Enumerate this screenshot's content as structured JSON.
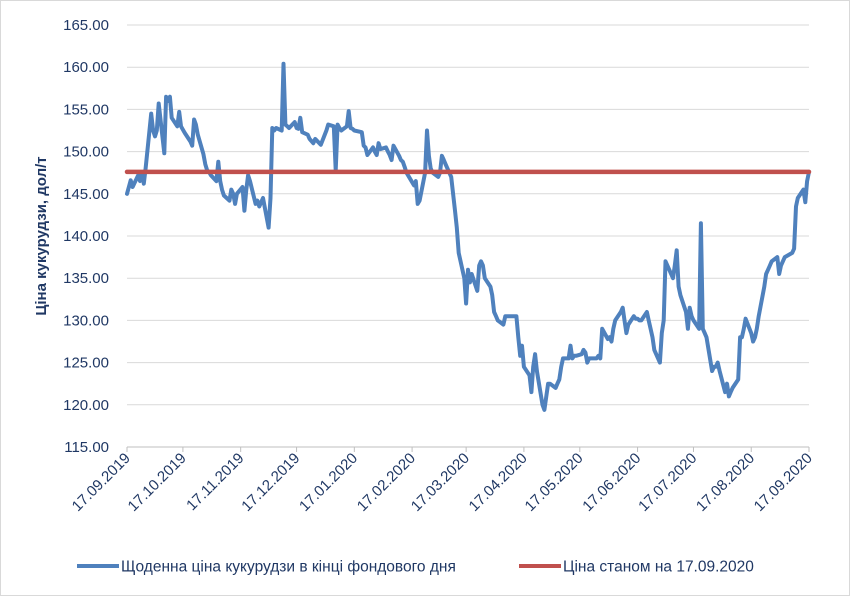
{
  "chart_data": {
    "type": "line",
    "ylabel": "Ціна кукурудзи, дол/т",
    "xlabel": "",
    "title": "",
    "ylim": [
      115,
      165
    ],
    "y_ticks": [
      "115.00",
      "120.00",
      "125.00",
      "130.00",
      "135.00",
      "140.00",
      "145.00",
      "150.00",
      "155.00",
      "160.00",
      "165.00"
    ],
    "x_range": [
      "2019-09-17",
      "2020-09-17"
    ],
    "x_ticks": [
      {
        "date": "2019-09-17",
        "label": "17.09.2019"
      },
      {
        "date": "2019-10-17",
        "label": "17.10.2019"
      },
      {
        "date": "2019-11-17",
        "label": "17.11.2019"
      },
      {
        "date": "2019-12-17",
        "label": "17.12.2019"
      },
      {
        "date": "2020-01-17",
        "label": "17.01.2020"
      },
      {
        "date": "2020-02-17",
        "label": "17.02.2020"
      },
      {
        "date": "2020-03-17",
        "label": "17.03.2020"
      },
      {
        "date": "2020-04-17",
        "label": "17.04.2020"
      },
      {
        "date": "2020-05-17",
        "label": "17.05.2020"
      },
      {
        "date": "2020-06-17",
        "label": "17.06.2020"
      },
      {
        "date": "2020-07-17",
        "label": "17.07.2020"
      },
      {
        "date": "2020-08-17",
        "label": "17.08.2020"
      },
      {
        "date": "2020-09-17",
        "label": "17.09.2020"
      }
    ],
    "grid": true,
    "legend_position": "bottom",
    "series": [
      {
        "name": "Щоденна ціна кукурудзи в кінці фондового дня",
        "color": "#4f81bd",
        "points": [
          [
            "2019-09-17",
            145.0
          ],
          [
            "2019-09-19",
            146.6
          ],
          [
            "2019-09-20",
            145.8
          ],
          [
            "2019-09-23",
            147.2
          ],
          [
            "2019-09-24",
            146.5
          ],
          [
            "2019-09-25",
            147.5
          ],
          [
            "2019-09-26",
            146.2
          ],
          [
            "2019-09-27",
            148.0
          ],
          [
            "2019-09-30",
            154.5
          ],
          [
            "2019-10-01",
            152.5
          ],
          [
            "2019-10-02",
            151.8
          ],
          [
            "2019-10-03",
            152.5
          ],
          [
            "2019-10-04",
            155.7
          ],
          [
            "2019-10-07",
            149.8
          ],
          [
            "2019-10-08",
            156.5
          ],
          [
            "2019-10-09",
            156.0
          ],
          [
            "2019-10-10",
            156.5
          ],
          [
            "2019-10-11",
            154.0
          ],
          [
            "2019-10-14",
            153.0
          ],
          [
            "2019-10-15",
            154.7
          ],
          [
            "2019-10-16",
            153.0
          ],
          [
            "2019-10-17",
            152.6
          ],
          [
            "2019-10-18",
            152.2
          ],
          [
            "2019-10-21",
            151.2
          ],
          [
            "2019-10-22",
            150.7
          ],
          [
            "2019-10-23",
            153.8
          ],
          [
            "2019-10-24",
            153.2
          ],
          [
            "2019-10-25",
            152.0
          ],
          [
            "2019-10-28",
            149.7
          ],
          [
            "2019-10-29",
            148.5
          ],
          [
            "2019-10-30",
            147.8
          ],
          [
            "2019-10-31",
            147.6
          ],
          [
            "2019-11-01",
            147.2
          ],
          [
            "2019-11-04",
            146.5
          ],
          [
            "2019-11-05",
            148.8
          ],
          [
            "2019-11-06",
            146.5
          ],
          [
            "2019-11-07",
            145.5
          ],
          [
            "2019-11-08",
            144.8
          ],
          [
            "2019-11-11",
            144.2
          ],
          [
            "2019-11-12",
            145.5
          ],
          [
            "2019-11-13",
            145.0
          ],
          [
            "2019-11-14",
            143.8
          ],
          [
            "2019-11-15",
            145.0
          ],
          [
            "2019-11-18",
            145.8
          ],
          [
            "2019-11-19",
            143.0
          ],
          [
            "2019-11-20",
            145.5
          ],
          [
            "2019-11-21",
            147.2
          ],
          [
            "2019-11-22",
            146.5
          ],
          [
            "2019-11-25",
            143.8
          ],
          [
            "2019-11-26",
            144.2
          ],
          [
            "2019-11-27",
            143.5
          ],
          [
            "2019-11-29",
            144.5
          ],
          [
            "2019-12-02",
            141.0
          ],
          [
            "2019-12-03",
            144.5
          ],
          [
            "2019-12-04",
            152.8
          ],
          [
            "2019-12-05",
            152.5
          ],
          [
            "2019-12-06",
            152.8
          ],
          [
            "2019-12-09",
            152.5
          ],
          [
            "2019-12-10",
            160.4
          ],
          [
            "2019-12-11",
            153.2
          ],
          [
            "2019-12-12",
            153.0
          ],
          [
            "2019-12-13",
            152.8
          ],
          [
            "2019-12-16",
            153.5
          ],
          [
            "2019-12-17",
            152.8
          ],
          [
            "2019-12-18",
            152.7
          ],
          [
            "2019-12-19",
            154.0
          ],
          [
            "2019-12-20",
            152.3
          ],
          [
            "2019-12-23",
            152.0
          ],
          [
            "2019-12-24",
            151.5
          ],
          [
            "2019-12-26",
            151.0
          ],
          [
            "2019-12-27",
            151.5
          ],
          [
            "2019-12-30",
            150.8
          ],
          [
            "2020-01-02",
            152.5
          ],
          [
            "2020-01-03",
            153.2
          ],
          [
            "2020-01-06",
            153.0
          ],
          [
            "2020-01-07",
            147.8
          ],
          [
            "2020-01-08",
            153.2
          ],
          [
            "2020-01-09",
            152.8
          ],
          [
            "2020-01-10",
            152.5
          ],
          [
            "2020-01-13",
            153.0
          ],
          [
            "2020-01-14",
            154.8
          ],
          [
            "2020-01-15",
            152.8
          ],
          [
            "2020-01-16",
            152.7
          ],
          [
            "2020-01-17",
            152.5
          ],
          [
            "2020-01-21",
            152.3
          ],
          [
            "2020-01-22",
            150.7
          ],
          [
            "2020-01-23",
            150.5
          ],
          [
            "2020-01-24",
            149.6
          ],
          [
            "2020-01-27",
            150.5
          ],
          [
            "2020-01-28",
            150.0
          ],
          [
            "2020-01-29",
            149.6
          ],
          [
            "2020-01-30",
            151.0
          ],
          [
            "2020-01-31",
            150.3
          ],
          [
            "2020-02-03",
            150.5
          ],
          [
            "2020-02-04",
            150.0
          ],
          [
            "2020-02-05",
            149.6
          ],
          [
            "2020-02-06",
            149.0
          ],
          [
            "2020-02-07",
            150.7
          ],
          [
            "2020-02-10",
            149.5
          ],
          [
            "2020-02-11",
            149.0
          ],
          [
            "2020-02-12",
            148.8
          ],
          [
            "2020-02-13",
            148.2
          ],
          [
            "2020-02-14",
            147.5
          ],
          [
            "2020-02-18",
            146.0
          ],
          [
            "2020-02-19",
            146.5
          ],
          [
            "2020-02-20",
            143.8
          ],
          [
            "2020-02-21",
            144.2
          ],
          [
            "2020-02-24",
            147.5
          ],
          [
            "2020-02-25",
            152.5
          ],
          [
            "2020-02-26",
            149.5
          ],
          [
            "2020-02-27",
            148.0
          ],
          [
            "2020-02-28",
            147.5
          ],
          [
            "2020-03-02",
            147.0
          ],
          [
            "2020-03-03",
            147.5
          ],
          [
            "2020-03-04",
            149.5
          ],
          [
            "2020-03-05",
            149.0
          ],
          [
            "2020-03-06",
            148.5
          ],
          [
            "2020-03-09",
            147.0
          ],
          [
            "2020-03-10",
            145.0
          ],
          [
            "2020-03-11",
            143.0
          ],
          [
            "2020-03-12",
            141.0
          ],
          [
            "2020-03-13",
            138.0
          ],
          [
            "2020-03-16",
            135.0
          ],
          [
            "2020-03-17",
            132.0
          ],
          [
            "2020-03-18",
            136.0
          ],
          [
            "2020-03-19",
            134.5
          ],
          [
            "2020-03-20",
            135.5
          ],
          [
            "2020-03-23",
            133.5
          ],
          [
            "2020-03-24",
            136.5
          ],
          [
            "2020-03-25",
            137.0
          ],
          [
            "2020-03-26",
            136.5
          ],
          [
            "2020-03-27",
            135.0
          ],
          [
            "2020-03-30",
            134.0
          ],
          [
            "2020-03-31",
            133.0
          ],
          [
            "2020-04-01",
            131.0
          ],
          [
            "2020-04-02",
            130.5
          ],
          [
            "2020-04-03",
            130.0
          ],
          [
            "2020-04-06",
            129.5
          ],
          [
            "2020-04-07",
            130.5
          ],
          [
            "2020-04-08",
            130.5
          ],
          [
            "2020-04-09",
            130.5
          ],
          [
            "2020-04-13",
            130.5
          ],
          [
            "2020-04-14",
            128.0
          ],
          [
            "2020-04-15",
            125.8
          ],
          [
            "2020-04-16",
            127.0
          ],
          [
            "2020-04-17",
            124.5
          ],
          [
            "2020-04-20",
            123.5
          ],
          [
            "2020-04-21",
            121.5
          ],
          [
            "2020-04-22",
            124.5
          ],
          [
            "2020-04-23",
            126.0
          ],
          [
            "2020-04-24",
            124.0
          ],
          [
            "2020-04-27",
            120.0
          ],
          [
            "2020-04-28",
            119.4
          ],
          [
            "2020-04-29",
            121.0
          ],
          [
            "2020-04-30",
            122.5
          ],
          [
            "2020-05-01",
            122.5
          ],
          [
            "2020-05-04",
            122.0
          ],
          [
            "2020-05-05",
            122.5
          ],
          [
            "2020-05-06",
            123.0
          ],
          [
            "2020-05-07",
            124.5
          ],
          [
            "2020-05-08",
            125.5
          ],
          [
            "2020-05-11",
            125.5
          ],
          [
            "2020-05-12",
            127.0
          ],
          [
            "2020-05-13",
            125.5
          ],
          [
            "2020-05-14",
            125.8
          ],
          [
            "2020-05-15",
            125.8
          ],
          [
            "2020-05-18",
            126.0
          ],
          [
            "2020-05-19",
            126.5
          ],
          [
            "2020-05-20",
            126.2
          ],
          [
            "2020-05-21",
            125.0
          ],
          [
            "2020-05-22",
            125.5
          ],
          [
            "2020-05-26",
            125.5
          ],
          [
            "2020-05-27",
            125.8
          ],
          [
            "2020-05-28",
            125.5
          ],
          [
            "2020-05-29",
            129.0
          ],
          [
            "2020-06-01",
            127.8
          ],
          [
            "2020-06-02",
            128.0
          ],
          [
            "2020-06-03",
            127.5
          ],
          [
            "2020-06-04",
            129.0
          ],
          [
            "2020-06-05",
            130.0
          ],
          [
            "2020-06-08",
            131.0
          ],
          [
            "2020-06-09",
            131.5
          ],
          [
            "2020-06-10",
            130.0
          ],
          [
            "2020-06-11",
            128.5
          ],
          [
            "2020-06-12",
            129.5
          ],
          [
            "2020-06-15",
            130.5
          ],
          [
            "2020-06-16",
            130.2
          ],
          [
            "2020-06-17",
            130.2
          ],
          [
            "2020-06-18",
            130.0
          ],
          [
            "2020-06-19",
            130.0
          ],
          [
            "2020-06-22",
            131.0
          ],
          [
            "2020-06-23",
            130.0
          ],
          [
            "2020-06-24",
            129.0
          ],
          [
            "2020-06-25",
            128.0
          ],
          [
            "2020-06-26",
            126.5
          ],
          [
            "2020-06-29",
            125.0
          ],
          [
            "2020-06-30",
            128.5
          ],
          [
            "2020-07-01",
            130.0
          ],
          [
            "2020-07-02",
            137.0
          ],
          [
            "2020-07-06",
            135.0
          ],
          [
            "2020-07-07",
            136.5
          ],
          [
            "2020-07-08",
            138.3
          ],
          [
            "2020-07-09",
            134.0
          ],
          [
            "2020-07-10",
            133.0
          ],
          [
            "2020-07-13",
            131.0
          ],
          [
            "2020-07-14",
            129.0
          ],
          [
            "2020-07-15",
            131.5
          ],
          [
            "2020-07-16",
            130.5
          ],
          [
            "2020-07-17",
            130.0
          ],
          [
            "2020-07-20",
            129.0
          ],
          [
            "2020-07-21",
            141.5
          ],
          [
            "2020-07-22",
            129.0
          ],
          [
            "2020-07-23",
            128.5
          ],
          [
            "2020-07-24",
            128.0
          ],
          [
            "2020-07-27",
            124.0
          ],
          [
            "2020-07-28",
            124.5
          ],
          [
            "2020-07-29",
            124.5
          ],
          [
            "2020-07-30",
            125.0
          ],
          [
            "2020-07-31",
            124.0
          ],
          [
            "2020-08-03",
            121.5
          ],
          [
            "2020-08-04",
            122.5
          ],
          [
            "2020-08-05",
            121.0
          ],
          [
            "2020-08-06",
            121.5
          ],
          [
            "2020-08-07",
            122.0
          ],
          [
            "2020-08-10",
            123.0
          ],
          [
            "2020-08-11",
            128.0
          ],
          [
            "2020-08-12",
            128.0
          ],
          [
            "2020-08-13",
            129.0
          ],
          [
            "2020-08-14",
            130.2
          ],
          [
            "2020-08-17",
            128.5
          ],
          [
            "2020-08-18",
            127.5
          ],
          [
            "2020-08-19",
            128.0
          ],
          [
            "2020-08-20",
            129.0
          ],
          [
            "2020-08-21",
            130.5
          ],
          [
            "2020-08-24",
            134.0
          ],
          [
            "2020-08-25",
            135.5
          ],
          [
            "2020-08-26",
            136.0
          ],
          [
            "2020-08-27",
            136.5
          ],
          [
            "2020-08-28",
            137.0
          ],
          [
            "2020-08-31",
            137.5
          ],
          [
            "2020-09-01",
            135.5
          ],
          [
            "2020-09-02",
            136.5
          ],
          [
            "2020-09-03",
            137.0
          ],
          [
            "2020-09-04",
            137.5
          ],
          [
            "2020-09-08",
            138.0
          ],
          [
            "2020-09-09",
            138.5
          ],
          [
            "2020-09-10",
            143.5
          ],
          [
            "2020-09-11",
            144.5
          ],
          [
            "2020-09-14",
            145.5
          ],
          [
            "2020-09-15",
            144.0
          ],
          [
            "2020-09-16",
            146.5
          ],
          [
            "2020-09-17",
            147.6
          ]
        ]
      },
      {
        "name": "Ціна станом на 17.09.2020",
        "color": "#c0504d",
        "points": [
          [
            "2019-09-17",
            147.6
          ],
          [
            "2020-09-17",
            147.6
          ]
        ]
      }
    ]
  }
}
